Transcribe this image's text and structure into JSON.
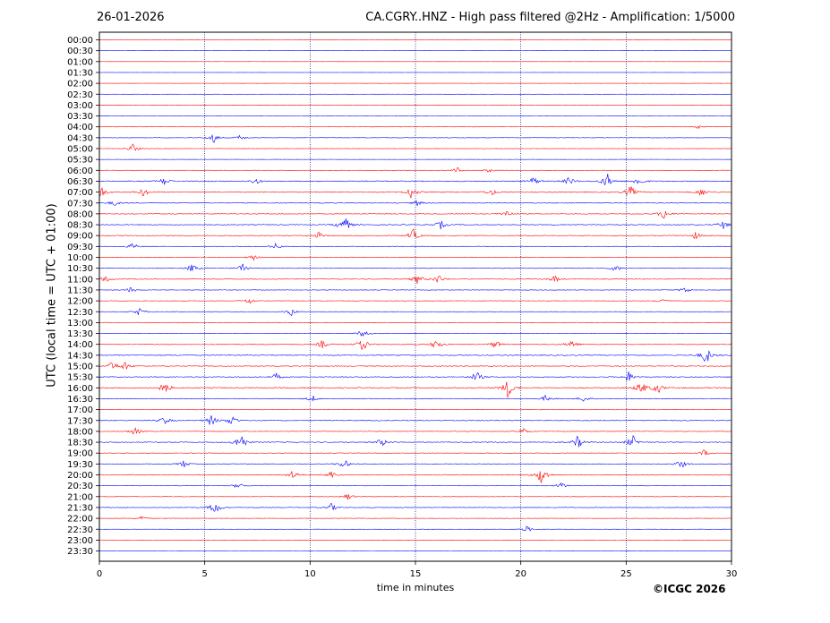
{
  "header": {
    "date": "26-01-2026",
    "title": "CA.CGRY..HNZ - High pass filtered @2Hz - Amplification: 1/5000"
  },
  "footer": {
    "copyright": "©ICGC 2026"
  },
  "chart_data": {
    "type": "line",
    "title": "CA.CGRY..HNZ - High pass filtered @2Hz - Amplification: 1/5000",
    "xlabel": "time in minutes",
    "ylabel": "UTC (local time = UTC + 01:00)",
    "xlim": [
      0,
      30
    ],
    "x_ticks": [
      0,
      5,
      10,
      15,
      20,
      25,
      30
    ],
    "x_tick_labels": [
      "0",
      "5",
      "10",
      "15",
      "20",
      "25",
      "30"
    ],
    "rows": [
      "00:00",
      "00:30",
      "01:00",
      "01:30",
      "02:00",
      "02:30",
      "03:00",
      "03:30",
      "04:00",
      "04:30",
      "05:00",
      "05:30",
      "06:00",
      "06:30",
      "07:00",
      "07:30",
      "08:00",
      "08:30",
      "09:00",
      "09:30",
      "10:00",
      "10:30",
      "11:00",
      "11:30",
      "12:00",
      "12:30",
      "13:00",
      "13:30",
      "14:00",
      "14:30",
      "15:00",
      "15:30",
      "16:00",
      "16:30",
      "17:00",
      "17:30",
      "18:00",
      "18:30",
      "19:00",
      "19:30",
      "20:00",
      "20:30",
      "21:00",
      "21:30",
      "22:00",
      "22:30",
      "23:00",
      "23:30"
    ],
    "row_colors": [
      "#ff0000",
      "#0000ff"
    ],
    "vertical_grid": "dotted",
    "amplitude": [
      0.05,
      0.05,
      0.05,
      0.05,
      0.05,
      0.05,
      0.06,
      0.06,
      0.08,
      0.15,
      0.1,
      0.08,
      0.15,
      0.35,
      0.35,
      0.25,
      0.25,
      0.3,
      0.25,
      0.2,
      0.25,
      0.22,
      0.25,
      0.18,
      0.15,
      0.15,
      0.2,
      0.15,
      0.3,
      0.35,
      0.3,
      0.3,
      0.4,
      0.25,
      0.2,
      0.3,
      0.2,
      0.3,
      0.18,
      0.25,
      0.3,
      0.15,
      0.15,
      0.2,
      0.12,
      0.1,
      0.05,
      0.05
    ],
    "events": [
      {
        "row": "04:00",
        "minute": 28.4,
        "amp": 0.3
      },
      {
        "row": "04:30",
        "minute": 5.4,
        "amp": 0.8
      },
      {
        "row": "04:30",
        "minute": 6.7,
        "amp": 0.4
      },
      {
        "row": "05:00",
        "minute": 1.6,
        "amp": 0.7
      },
      {
        "row": "06:00",
        "minute": 17,
        "amp": 0.4
      },
      {
        "row": "06:00",
        "minute": 18.5,
        "amp": 0.3
      },
      {
        "row": "06:30",
        "minute": 3.1,
        "amp": 0.6
      },
      {
        "row": "06:30",
        "minute": 7.4,
        "amp": 0.5
      },
      {
        "row": "06:30",
        "minute": 20.6,
        "amp": 0.6
      },
      {
        "row": "06:30",
        "minute": 22.3,
        "amp": 0.6
      },
      {
        "row": "06:30",
        "minute": 24.1,
        "amp": 1.1
      },
      {
        "row": "06:30",
        "minute": 25.6,
        "amp": 0.7
      },
      {
        "row": "07:00",
        "minute": 0.1,
        "amp": 0.8
      },
      {
        "row": "07:00",
        "minute": 2.1,
        "amp": 0.6
      },
      {
        "row": "07:00",
        "minute": 14.8,
        "amp": 0.9
      },
      {
        "row": "07:00",
        "minute": 18.6,
        "amp": 0.5
      },
      {
        "row": "07:00",
        "minute": 25.2,
        "amp": 0.9
      },
      {
        "row": "07:00",
        "minute": 28.6,
        "amp": 0.6
      },
      {
        "row": "07:30",
        "minute": 0.7,
        "amp": 0.4
      },
      {
        "row": "07:30",
        "minute": 15.1,
        "amp": 0.4
      },
      {
        "row": "08:00",
        "minute": 19.3,
        "amp": 0.6
      },
      {
        "row": "08:00",
        "minute": 26.8,
        "amp": 0.9
      },
      {
        "row": "08:30",
        "minute": 11.6,
        "amp": 1.6
      },
      {
        "row": "08:30",
        "minute": 16.2,
        "amp": 0.6
      },
      {
        "row": "08:30",
        "minute": 29.6,
        "amp": 0.6
      },
      {
        "row": "09:00",
        "minute": 10.4,
        "amp": 0.5
      },
      {
        "row": "09:00",
        "minute": 14.9,
        "amp": 0.9
      },
      {
        "row": "09:00",
        "minute": 28.3,
        "amp": 0.5
      },
      {
        "row": "09:30",
        "minute": 1.6,
        "amp": 0.5
      },
      {
        "row": "09:30",
        "minute": 8.4,
        "amp": 0.5
      },
      {
        "row": "10:00",
        "minute": 7.3,
        "amp": 0.4
      },
      {
        "row": "10:30",
        "minute": 4.4,
        "amp": 0.6
      },
      {
        "row": "10:30",
        "minute": 6.8,
        "amp": 0.6
      },
      {
        "row": "10:30",
        "minute": 24.5,
        "amp": 0.5
      },
      {
        "row": "11:00",
        "minute": 0.3,
        "amp": 0.5
      },
      {
        "row": "11:00",
        "minute": 15.1,
        "amp": 0.7
      },
      {
        "row": "11:00",
        "minute": 16.1,
        "amp": 0.7
      },
      {
        "row": "11:00",
        "minute": 21.6,
        "amp": 0.5
      },
      {
        "row": "11:30",
        "minute": 1.5,
        "amp": 0.4
      },
      {
        "row": "11:30",
        "minute": 27.8,
        "amp": 0.5
      },
      {
        "row": "12:00",
        "minute": 7.1,
        "amp": 0.5
      },
      {
        "row": "12:00",
        "minute": 26.7,
        "amp": 0.5
      },
      {
        "row": "12:30",
        "minute": 1.9,
        "amp": 0.6
      },
      {
        "row": "12:30",
        "minute": 9.1,
        "amp": 0.6
      },
      {
        "row": "13:30",
        "minute": 12.5,
        "amp": 0.6
      },
      {
        "row": "14:00",
        "minute": 10.6,
        "amp": 0.6
      },
      {
        "row": "14:00",
        "minute": 12.5,
        "amp": 0.9
      },
      {
        "row": "14:00",
        "minute": 16,
        "amp": 0.8
      },
      {
        "row": "14:00",
        "minute": 18.8,
        "amp": 0.6
      },
      {
        "row": "14:00",
        "minute": 22.4,
        "amp": 0.7
      },
      {
        "row": "14:30",
        "minute": 28.8,
        "amp": 1.3
      },
      {
        "row": "15:00",
        "minute": 0.6,
        "amp": 0.6
      },
      {
        "row": "15:00",
        "minute": 1.2,
        "amp": 0.6
      },
      {
        "row": "15:30",
        "minute": 8.4,
        "amp": 0.5
      },
      {
        "row": "15:30",
        "minute": 17.9,
        "amp": 0.8
      },
      {
        "row": "15:30",
        "minute": 25.1,
        "amp": 0.8
      },
      {
        "row": "16:00",
        "minute": 3.1,
        "amp": 0.9
      },
      {
        "row": "16:00",
        "minute": 19.4,
        "amp": 1.4
      },
      {
        "row": "16:00",
        "minute": 25.7,
        "amp": 1
      },
      {
        "row": "16:00",
        "minute": 26.5,
        "amp": 0.8
      },
      {
        "row": "16:30",
        "minute": 10.1,
        "amp": 0.5
      },
      {
        "row": "16:30",
        "minute": 21.2,
        "amp": 0.5
      },
      {
        "row": "16:30",
        "minute": 23,
        "amp": 0.5
      },
      {
        "row": "17:30",
        "minute": 3.1,
        "amp": 0.6
      },
      {
        "row": "17:30",
        "minute": 5.3,
        "amp": 0.8
      },
      {
        "row": "17:30",
        "minute": 6.3,
        "amp": 0.8
      },
      {
        "row": "18:00",
        "minute": 1.7,
        "amp": 0.7
      },
      {
        "row": "18:00",
        "minute": 20.1,
        "amp": 0.5
      },
      {
        "row": "18:30",
        "minute": 6.7,
        "amp": 1.5
      },
      {
        "row": "18:30",
        "minute": 13.4,
        "amp": 0.6
      },
      {
        "row": "18:30",
        "minute": 22.7,
        "amp": 0.9
      },
      {
        "row": "18:30",
        "minute": 25.3,
        "amp": 1
      },
      {
        "row": "19:00",
        "minute": 28.7,
        "amp": 0.5
      },
      {
        "row": "19:30",
        "minute": 4,
        "amp": 0.5
      },
      {
        "row": "19:30",
        "minute": 11.6,
        "amp": 0.7
      },
      {
        "row": "19:30",
        "minute": 27.6,
        "amp": 0.6
      },
      {
        "row": "20:00",
        "minute": 9.2,
        "amp": 0.7
      },
      {
        "row": "20:00",
        "minute": 11,
        "amp": 0.6
      },
      {
        "row": "20:00",
        "minute": 21,
        "amp": 1.5
      },
      {
        "row": "20:30",
        "minute": 6.6,
        "amp": 0.5
      },
      {
        "row": "20:30",
        "minute": 21.9,
        "amp": 0.5
      },
      {
        "row": "21:00",
        "minute": 11.8,
        "amp": 0.5
      },
      {
        "row": "21:30",
        "minute": 5.5,
        "amp": 1.1
      },
      {
        "row": "21:30",
        "minute": 11,
        "amp": 0.6
      },
      {
        "row": "22:00",
        "minute": 2,
        "amp": 0.4
      },
      {
        "row": "22:30",
        "minute": 20.3,
        "amp": 0.5
      }
    ]
  }
}
